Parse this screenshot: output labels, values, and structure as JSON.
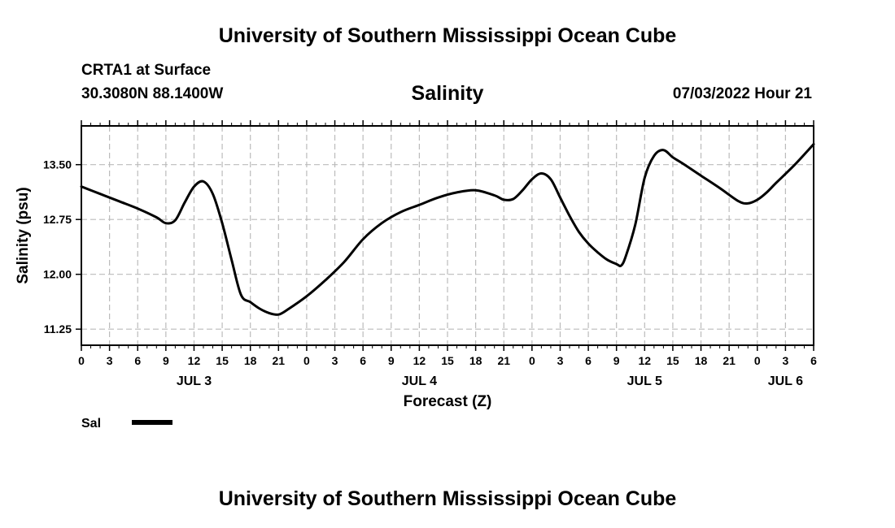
{
  "header": {
    "title": "University of Southern Mississippi Ocean Cube",
    "station": "CRTA1 at Surface",
    "coords": "30.3080N  88.1400W",
    "datetime": "07/03/2022 Hour 21"
  },
  "footer": {
    "title": "University of Southern Mississippi Ocean Cube"
  },
  "chart_data": {
    "type": "line",
    "title": "Salinity",
    "xlabel": "Forecast (Z)",
    "ylabel": "Salinity (psu)",
    "xlim": [
      0,
      78
    ],
    "ylim": [
      11.03,
      14.03
    ],
    "grid": true,
    "y_ticks": [
      11.25,
      12.0,
      12.75,
      13.5
    ],
    "y_tick_labels": [
      "11.25",
      "12.00",
      "12.75",
      "13.50"
    ],
    "x_ticks": [
      0,
      3,
      6,
      9,
      12,
      15,
      18,
      21,
      24,
      27,
      30,
      33,
      36,
      39,
      42,
      45,
      48,
      51,
      54,
      57,
      60,
      63,
      66,
      69,
      72,
      75,
      78
    ],
    "x_tick_labels": [
      "0",
      "3",
      "6",
      "9",
      "12",
      "15",
      "18",
      "21",
      "0",
      "3",
      "6",
      "9",
      "12",
      "15",
      "18",
      "21",
      "0",
      "3",
      "6",
      "9",
      "12",
      "15",
      "18",
      "21",
      "0",
      "3",
      "6"
    ],
    "date_labels": [
      {
        "x": 12,
        "label": "JUL 3"
      },
      {
        "x": 36,
        "label": "JUL 4"
      },
      {
        "x": 60,
        "label": "JUL 5"
      },
      {
        "x": 75,
        "label": "JUL 6"
      }
    ],
    "legend": {
      "position": "bottom-left",
      "entries": [
        "Sal"
      ]
    },
    "series": [
      {
        "name": "Sal",
        "x": [
          0,
          2,
          4,
          6,
          8,
          9,
          10,
          11,
          12,
          13,
          14,
          15,
          16,
          17,
          18,
          19,
          20,
          21,
          22,
          24,
          26,
          28,
          30,
          32,
          34,
          36,
          38,
          40,
          42,
          44,
          45,
          46,
          47,
          48,
          49,
          50,
          51,
          52,
          53,
          54,
          55,
          56,
          57,
          57.5,
          58,
          59,
          60,
          61,
          62,
          63,
          64,
          66,
          68,
          70,
          71,
          72,
          73,
          74,
          76,
          78
        ],
        "values": [
          13.2,
          13.1,
          13.0,
          12.9,
          12.78,
          12.7,
          12.74,
          12.98,
          13.2,
          13.27,
          13.1,
          12.7,
          12.2,
          11.72,
          11.62,
          11.53,
          11.47,
          11.45,
          11.52,
          11.7,
          11.92,
          12.17,
          12.48,
          12.7,
          12.85,
          12.95,
          13.05,
          13.12,
          13.15,
          13.08,
          13.02,
          13.03,
          13.15,
          13.3,
          13.38,
          13.3,
          13.05,
          12.8,
          12.58,
          12.42,
          12.3,
          12.2,
          12.14,
          12.12,
          12.25,
          12.68,
          13.32,
          13.62,
          13.7,
          13.6,
          13.52,
          13.35,
          13.18,
          13.0,
          12.97,
          13.02,
          13.12,
          13.25,
          13.5,
          13.78
        ]
      }
    ]
  }
}
